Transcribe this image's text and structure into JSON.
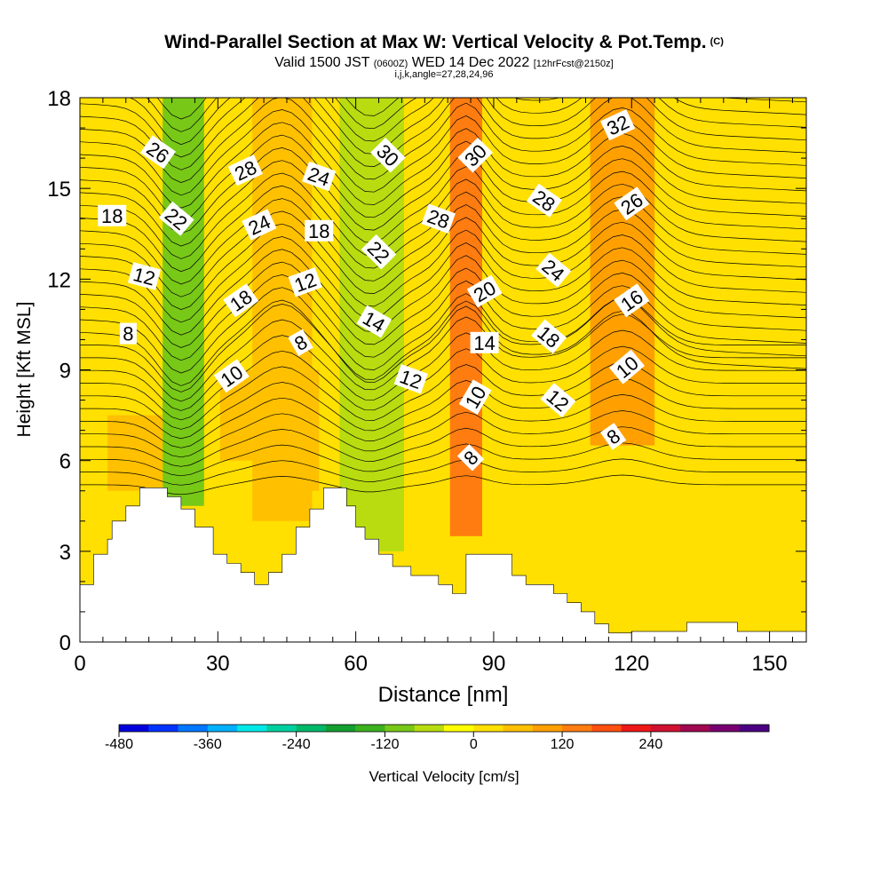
{
  "titles": {
    "main": "Wind-Parallel Section at Max W: Vertical Velocity & Pot.Temp.",
    "main_unit": "(C)",
    "valid_a": "Valid 1500 JST",
    "valid_z": "(0600Z)",
    "valid_b": "WED 14 Dec 2022",
    "valid_fcst": "[12hrFcst@2150z]",
    "indices": "i,j,k,angle=27,28,24,96"
  },
  "chart_data": {
    "type": "heatmap",
    "xlabel": "Distance [nm]",
    "ylabel": "Height [Kft MSL]",
    "xlim": [
      0,
      158
    ],
    "ylim": [
      0,
      18
    ],
    "x_ticks": [
      0,
      30,
      60,
      90,
      120,
      150
    ],
    "y_ticks": [
      0,
      3,
      6,
      9,
      12,
      15,
      18
    ],
    "colorbar": {
      "label": "Vertical Velocity [cm/s]",
      "min": -480,
      "step": 40,
      "tick_labels": [
        -480,
        -360,
        -240,
        -120,
        0,
        120,
        240
      ],
      "colors": [
        "#0000dd",
        "#0033ff",
        "#0077ff",
        "#00b0ff",
        "#00e8e8",
        "#00d0a0",
        "#00b86a",
        "#14a030",
        "#3cb220",
        "#78c818",
        "#b8dc10",
        "#ffff00",
        "#ffe000",
        "#ffc000",
        "#ffa000",
        "#ff7c10",
        "#ff5010",
        "#ee1818",
        "#d01030",
        "#a00850",
        "#780070",
        "#4b0082"
      ]
    },
    "velocity_columns": [
      {
        "x": 22.5,
        "half_width": 3.5,
        "value": -170,
        "z_min": 6.5,
        "z_max": 18
      },
      {
        "x": 22.5,
        "half_width": 4.5,
        "value": -110,
        "z_min": 4.5,
        "z_max": 18
      },
      {
        "x": 44.5,
        "half_width": 4.0,
        "value": 130,
        "z_min": 7.5,
        "z_max": 18
      },
      {
        "x": 44.0,
        "half_width": 6.5,
        "value": 70,
        "z_min": 4.0,
        "z_max": 18
      },
      {
        "x": 63.5,
        "half_width": 5.0,
        "value": -130,
        "z_min": 7.0,
        "z_max": 18
      },
      {
        "x": 63.5,
        "half_width": 7.0,
        "value": -50,
        "z_min": 3.0,
        "z_max": 18
      },
      {
        "x": 84.0,
        "half_width": 2.0,
        "value": 190,
        "z_min": 6.0,
        "z_max": 17
      },
      {
        "x": 84.0,
        "half_width": 3.5,
        "value": 130,
        "z_min": 3.5,
        "z_max": 18
      },
      {
        "x": 108.0,
        "half_width": 2.5,
        "value": 20,
        "z_min": 0.5,
        "z_max": 5.5
      },
      {
        "x": 118.0,
        "half_width": 4.5,
        "value": 150,
        "z_min": 8.5,
        "z_max": 17
      },
      {
        "x": 118.0,
        "half_width": 7.0,
        "value": 90,
        "z_min": 6.5,
        "z_max": 18
      },
      {
        "x": 12.0,
        "half_width": 6.0,
        "value": 50,
        "z_min": 5.0,
        "z_max": 7.5
      },
      {
        "x": 34.0,
        "half_width": 3.5,
        "value": 50,
        "z_min": 6.0,
        "z_max": 9.0
      },
      {
        "x": 48.0,
        "half_width": 4.0,
        "value": 60,
        "z_min": 5.0,
        "z_max": 9.0
      }
    ],
    "terrain": [
      [
        0,
        1.9
      ],
      [
        3,
        1.9
      ],
      [
        3,
        2.9
      ],
      [
        6,
        2.9
      ],
      [
        6,
        3.4
      ],
      [
        7,
        3.4
      ],
      [
        7,
        4.0
      ],
      [
        10,
        4.0
      ],
      [
        10,
        4.5
      ],
      [
        13,
        4.5
      ],
      [
        13,
        5.1
      ],
      [
        19,
        5.1
      ],
      [
        19,
        4.8
      ],
      [
        22,
        4.8
      ],
      [
        22,
        4.4
      ],
      [
        25,
        4.4
      ],
      [
        25,
        3.8
      ],
      [
        29,
        3.8
      ],
      [
        29,
        2.9
      ],
      [
        32,
        2.9
      ],
      [
        32,
        2.6
      ],
      [
        35,
        2.6
      ],
      [
        35,
        2.3
      ],
      [
        38,
        2.3
      ],
      [
        38,
        1.9
      ],
      [
        41,
        1.9
      ],
      [
        41,
        2.3
      ],
      [
        44,
        2.3
      ],
      [
        44,
        2.9
      ],
      [
        47,
        2.9
      ],
      [
        47,
        3.8
      ],
      [
        50,
        3.8
      ],
      [
        50,
        4.4
      ],
      [
        53,
        4.4
      ],
      [
        53,
        5.1
      ],
      [
        58,
        5.1
      ],
      [
        58,
        4.5
      ],
      [
        60,
        4.5
      ],
      [
        60,
        3.8
      ],
      [
        62,
        3.8
      ],
      [
        62,
        3.4
      ],
      [
        65,
        3.4
      ],
      [
        65,
        2.9
      ],
      [
        68,
        2.9
      ],
      [
        68,
        2.5
      ],
      [
        72,
        2.5
      ],
      [
        72,
        2.2
      ],
      [
        78,
        2.2
      ],
      [
        78,
        1.9
      ],
      [
        81,
        1.9
      ],
      [
        81,
        1.6
      ],
      [
        84,
        1.6
      ],
      [
        84,
        2.9
      ],
      [
        94,
        2.9
      ],
      [
        94,
        2.2
      ],
      [
        97,
        2.2
      ],
      [
        97,
        1.9
      ],
      [
        103,
        1.9
      ],
      [
        103,
        1.6
      ],
      [
        106,
        1.6
      ],
      [
        106,
        1.3
      ],
      [
        109,
        1.3
      ],
      [
        109,
        1.0
      ],
      [
        112,
        1.0
      ],
      [
        112,
        0.6
      ],
      [
        115,
        0.6
      ],
      [
        115,
        0.3
      ],
      [
        120,
        0.3
      ],
      [
        120,
        0.35
      ],
      [
        132,
        0.35
      ],
      [
        132,
        0.65
      ],
      [
        143,
        0.65
      ],
      [
        143,
        0.35
      ],
      [
        158,
        0.35
      ]
    ],
    "contour_labels": [
      {
        "text": "26",
        "x": 17,
        "z": 16.2,
        "angle": 35
      },
      {
        "text": "18",
        "x": 7,
        "z": 14.1,
        "angle": 0
      },
      {
        "text": "22",
        "x": 21,
        "z": 14.0,
        "angle": 40
      },
      {
        "text": "12",
        "x": 14,
        "z": 12.1,
        "angle": 15
      },
      {
        "text": "8",
        "x": 10.5,
        "z": 10.2,
        "angle": 0
      },
      {
        "text": "28",
        "x": 36,
        "z": 15.6,
        "angle": -25
      },
      {
        "text": "24",
        "x": 39,
        "z": 13.8,
        "angle": -25
      },
      {
        "text": "18",
        "x": 35,
        "z": 11.3,
        "angle": -35
      },
      {
        "text": "10",
        "x": 33,
        "z": 8.8,
        "angle": -35
      },
      {
        "text": "24",
        "x": 52,
        "z": 15.4,
        "angle": 20
      },
      {
        "text": "18",
        "x": 52,
        "z": 13.6,
        "angle": 0
      },
      {
        "text": "12",
        "x": 49,
        "z": 11.9,
        "angle": -20
      },
      {
        "text": "8",
        "x": 48,
        "z": 9.9,
        "angle": -30
      },
      {
        "text": "30",
        "x": 67,
        "z": 16.1,
        "angle": 45
      },
      {
        "text": "22",
        "x": 65,
        "z": 12.9,
        "angle": 45
      },
      {
        "text": "14",
        "x": 64,
        "z": 10.6,
        "angle": 30
      },
      {
        "text": "28",
        "x": 78,
        "z": 14.0,
        "angle": 20
      },
      {
        "text": "12",
        "x": 72,
        "z": 8.7,
        "angle": 20
      },
      {
        "text": "30",
        "x": 86,
        "z": 16.1,
        "angle": -45
      },
      {
        "text": "20",
        "x": 88,
        "z": 11.6,
        "angle": -30
      },
      {
        "text": "14",
        "x": 88,
        "z": 9.9,
        "angle": 0
      },
      {
        "text": "10",
        "x": 86,
        "z": 8.1,
        "angle": -60
      },
      {
        "text": "8",
        "x": 85,
        "z": 6.1,
        "angle": -45
      },
      {
        "text": "28",
        "x": 101,
        "z": 14.6,
        "angle": 35
      },
      {
        "text": "24",
        "x": 103,
        "z": 12.3,
        "angle": 40
      },
      {
        "text": "18",
        "x": 102,
        "z": 10.1,
        "angle": 40
      },
      {
        "text": "12",
        "x": 104,
        "z": 8.0,
        "angle": 40
      },
      {
        "text": "32",
        "x": 117,
        "z": 17.1,
        "angle": -25
      },
      {
        "text": "26",
        "x": 120,
        "z": 14.5,
        "angle": -35
      },
      {
        "text": "16",
        "x": 120,
        "z": 11.3,
        "angle": -35
      },
      {
        "text": "10",
        "x": 119,
        "z": 9.1,
        "angle": -40
      },
      {
        "text": "8",
        "x": 116,
        "z": 6.8,
        "angle": -35
      }
    ]
  }
}
